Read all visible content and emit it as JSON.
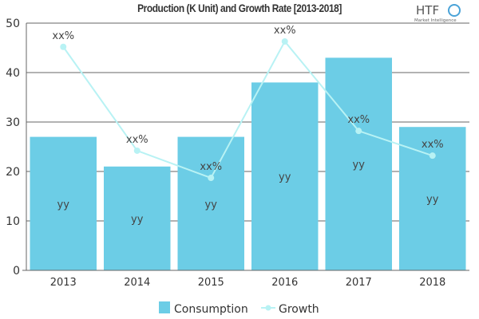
{
  "chart_data": {
    "type": "bar",
    "title": "Production (K Unit) and Growth Rate [2013-2018]",
    "categories": [
      "2013",
      "2014",
      "2015",
      "2016",
      "2017",
      "2018"
    ],
    "ylim": [
      0,
      50
    ],
    "yticks": [
      0,
      10,
      20,
      30,
      40,
      50
    ],
    "grid": true,
    "legend_position": "bottom",
    "series": [
      {
        "name": "Consumption",
        "type": "bar",
        "color": "#6ccde6",
        "values": [
          27,
          21,
          27,
          38,
          43,
          29
        ],
        "labels": [
          "yy",
          "yy",
          "yy",
          "yy",
          "yy",
          "yy"
        ]
      },
      {
        "name": "Growth",
        "type": "line",
        "color": "#b8f2f4",
        "values": [
          45.2,
          24.2,
          18.7,
          46.3,
          28.2,
          23.2
        ],
        "labels": [
          "xx%",
          "xx%",
          "xx%",
          "xx%",
          "xx%",
          "xx%"
        ]
      }
    ]
  },
  "logo": {
    "text": "HTF",
    "subtext": "Market Intelligence"
  }
}
